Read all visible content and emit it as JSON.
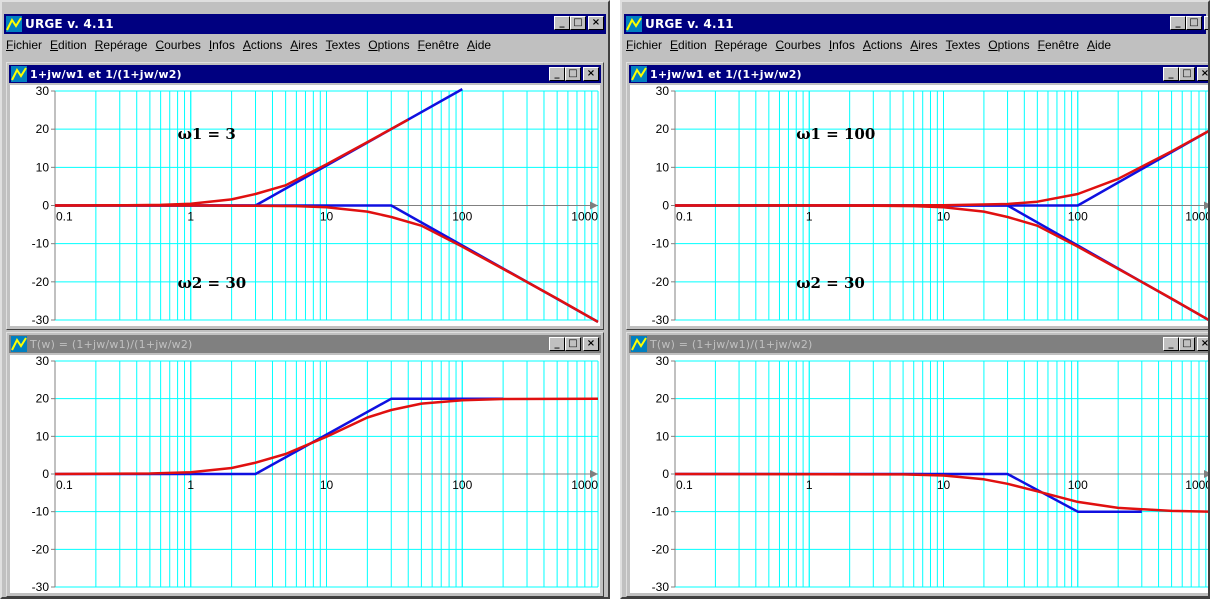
{
  "colors": {
    "grid": "#00ffff",
    "asymptote": "#1010e0",
    "exact": "#e01010",
    "titlebar_active": "#000080",
    "titlebar_inactive": "#808080"
  },
  "windows": [
    {
      "app_title": "URGE v. 4.11",
      "menu": [
        "Fichier",
        "Edition",
        "Repérage",
        "Courbes",
        "Infos",
        "Actions",
        "Aires",
        "Textes",
        "Options",
        "Fenêtre",
        "Aide"
      ],
      "plots": [
        {
          "title": "1+jw/w1 et 1/(1+jw/w2)",
          "active": true,
          "annotations": [
            {
              "text": "ω1 = 3",
              "x": 0.8,
              "y": 19
            },
            {
              "text": "ω2 = 30",
              "x": 0.8,
              "y": -20
            }
          ],
          "chart_data": {
            "type": "line",
            "x_scale": "log",
            "xlim": [
              0.1,
              1000
            ],
            "ylim": [
              -30,
              30
            ],
            "x_ticks": [
              "0.1",
              "1",
              "10",
              "100",
              "1000"
            ],
            "y_ticks": [
              "30",
              "20",
              "10",
              "0",
              "-10",
              "-20",
              "-30"
            ],
            "grid": true,
            "series": [
              {
                "color": "asymptote",
                "points": [
                  [
                    0.1,
                    0
                  ],
                  [
                    3,
                    0
                  ],
                  [
                    100,
                    30.5
                  ]
                ]
              },
              {
                "color": "asymptote",
                "points": [
                  [
                    0.1,
                    0
                  ],
                  [
                    30,
                    0
                  ],
                  [
                    1000,
                    -30.5
                  ]
                ]
              },
              {
                "color": "exact",
                "points": [
                  [
                    0.1,
                    0
                  ],
                  [
                    0.3,
                    0.04
                  ],
                  [
                    0.6,
                    0.17
                  ],
                  [
                    1,
                    0.46
                  ],
                  [
                    2,
                    1.6
                  ],
                  [
                    3,
                    3.0
                  ],
                  [
                    5,
                    5.3
                  ],
                  [
                    10,
                    10.8
                  ],
                  [
                    20,
                    16.6
                  ],
                  [
                    40,
                    22.5
                  ]
                ]
              },
              {
                "color": "exact",
                "points": [
                  [
                    0.1,
                    0
                  ],
                  [
                    1,
                    -0.005
                  ],
                  [
                    3,
                    -0.04
                  ],
                  [
                    6,
                    -0.17
                  ],
                  [
                    10,
                    -0.46
                  ],
                  [
                    20,
                    -1.6
                  ],
                  [
                    30,
                    -3.0
                  ],
                  [
                    50,
                    -5.3
                  ],
                  [
                    100,
                    -10.8
                  ],
                  [
                    200,
                    -16.6
                  ],
                  [
                    500,
                    -24.4
                  ],
                  [
                    1000,
                    -30.5
                  ]
                ]
              }
            ]
          }
        },
        {
          "title": "T(w) = (1+jw/w1)/(1+jw/w2)",
          "active": false,
          "annotations": [],
          "chart_data": {
            "type": "line",
            "x_scale": "log",
            "xlim": [
              0.1,
              1000
            ],
            "ylim": [
              -30,
              30
            ],
            "x_ticks": [
              "0.1",
              "1",
              "10",
              "100",
              "1000"
            ],
            "y_ticks": [
              "30",
              "20",
              "10",
              "0",
              "-10",
              "-20",
              "-30"
            ],
            "grid": true,
            "series": [
              {
                "color": "asymptote",
                "points": [
                  [
                    0.1,
                    0
                  ],
                  [
                    3,
                    0
                  ],
                  [
                    30,
                    20
                  ],
                  [
                    200,
                    20
                  ]
                ]
              },
              {
                "color": "exact",
                "points": [
                  [
                    0.1,
                    0
                  ],
                  [
                    0.5,
                    0.12
                  ],
                  [
                    1,
                    0.46
                  ],
                  [
                    2,
                    1.6
                  ],
                  [
                    3,
                    3.0
                  ],
                  [
                    5,
                    5.3
                  ],
                  [
                    10,
                    9.9
                  ],
                  [
                    20,
                    15.0
                  ],
                  [
                    30,
                    17.0
                  ],
                  [
                    50,
                    18.7
                  ],
                  [
                    100,
                    19.6
                  ],
                  [
                    200,
                    19.9
                  ],
                  [
                    1000,
                    20
                  ]
                ]
              }
            ]
          }
        }
      ]
    },
    {
      "app_title": "URGE v. 4.11",
      "menu": [
        "Fichier",
        "Edition",
        "Repérage",
        "Courbes",
        "Infos",
        "Actions",
        "Aires",
        "Textes",
        "Options",
        "Fenêtre",
        "Aide"
      ],
      "plots": [
        {
          "title": "1+jw/w1 et 1/(1+jw/w2)",
          "active": true,
          "annotations": [
            {
              "text": "ω1 = 100",
              "x": 0.8,
              "y": 19
            },
            {
              "text": "ω2 = 30",
              "x": 0.8,
              "y": -20
            }
          ],
          "chart_data": {
            "type": "line",
            "x_scale": "log",
            "xlim": [
              0.1,
              1000
            ],
            "ylim": [
              -30,
              30
            ],
            "x_ticks": [
              "0.1",
              "1",
              "10",
              "100",
              "1000"
            ],
            "y_ticks": [
              "30",
              "20",
              "10",
              "0",
              "-10",
              "-20",
              "-30"
            ],
            "grid": true,
            "series": [
              {
                "color": "asymptote",
                "points": [
                  [
                    0.1,
                    0
                  ],
                  [
                    100,
                    0
                  ],
                  [
                    1000,
                    20
                  ]
                ]
              },
              {
                "color": "asymptote",
                "points": [
                  [
                    0.1,
                    0
                  ],
                  [
                    30,
                    0
                  ],
                  [
                    1000,
                    -30.5
                  ]
                ]
              },
              {
                "color": "exact",
                "points": [
                  [
                    0.1,
                    0
                  ],
                  [
                    10,
                    0.04
                  ],
                  [
                    30,
                    0.4
                  ],
                  [
                    50,
                    1.0
                  ],
                  [
                    100,
                    3.0
                  ],
                  [
                    200,
                    7.0
                  ],
                  [
                    500,
                    14.2
                  ],
                  [
                    1000,
                    20
                  ]
                ]
              },
              {
                "color": "exact",
                "points": [
                  [
                    0.1,
                    0
                  ],
                  [
                    1,
                    -0.005
                  ],
                  [
                    3,
                    -0.04
                  ],
                  [
                    6,
                    -0.17
                  ],
                  [
                    10,
                    -0.46
                  ],
                  [
                    20,
                    -1.6
                  ],
                  [
                    30,
                    -3.0
                  ],
                  [
                    50,
                    -5.3
                  ],
                  [
                    100,
                    -10.8
                  ],
                  [
                    200,
                    -16.6
                  ],
                  [
                    500,
                    -24.4
                  ],
                  [
                    1000,
                    -30.5
                  ]
                ]
              }
            ]
          }
        },
        {
          "title": "T(w) = (1+jw/w1)/(1+jw/w2)",
          "active": false,
          "annotations": [],
          "chart_data": {
            "type": "line",
            "x_scale": "log",
            "xlim": [
              0.1,
              1000
            ],
            "ylim": [
              -30,
              30
            ],
            "x_ticks": [
              "0.1",
              "1",
              "10",
              "100",
              "1000"
            ],
            "y_ticks": [
              "30",
              "20",
              "10",
              "0",
              "-10",
              "-20",
              "-30"
            ],
            "grid": true,
            "series": [
              {
                "color": "asymptote",
                "points": [
                  [
                    0.1,
                    0
                  ],
                  [
                    30,
                    0
                  ],
                  [
                    100,
                    -10
                  ],
                  [
                    300,
                    -10
                  ]
                ]
              },
              {
                "color": "exact",
                "points": [
                  [
                    0.1,
                    0
                  ],
                  [
                    5,
                    -0.1
                  ],
                  [
                    10,
                    -0.4
                  ],
                  [
                    20,
                    -1.4
                  ],
                  [
                    30,
                    -2.6
                  ],
                  [
                    50,
                    -4.6
                  ],
                  [
                    100,
                    -7.4
                  ],
                  [
                    200,
                    -9.0
                  ],
                  [
                    500,
                    -9.8
                  ],
                  [
                    1000,
                    -10
                  ]
                ]
              }
            ]
          }
        }
      ]
    }
  ]
}
